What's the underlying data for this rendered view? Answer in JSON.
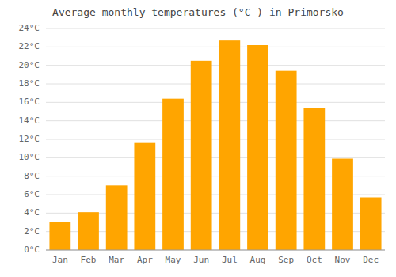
{
  "chart_data": {
    "type": "bar",
    "title": "Average monthly temperatures (°C ) in Primorsko",
    "categories": [
      "Jan",
      "Feb",
      "Mar",
      "Apr",
      "May",
      "Jun",
      "Jul",
      "Aug",
      "Sep",
      "Oct",
      "Nov",
      "Dec"
    ],
    "values": [
      3.0,
      4.1,
      7.0,
      11.6,
      16.4,
      20.5,
      22.7,
      22.2,
      19.4,
      15.4,
      9.9,
      5.7
    ],
    "color": "#FFA500",
    "ylim": [
      0,
      24
    ],
    "yticks": [
      {
        "value": 0,
        "label": "0°C"
      },
      {
        "value": 2,
        "label": "2°C"
      },
      {
        "value": 4,
        "label": "4°C"
      },
      {
        "value": 6,
        "label": "6°C"
      },
      {
        "value": 8,
        "label": "8°C"
      },
      {
        "value": 10,
        "label": "10°C"
      },
      {
        "value": 12,
        "label": "12°C"
      },
      {
        "value": 14,
        "label": "14°C"
      },
      {
        "value": 16,
        "label": "16°C"
      },
      {
        "value": 18,
        "label": "18°C"
      },
      {
        "value": 20,
        "label": "20°C"
      },
      {
        "value": 22,
        "label": "22°C"
      },
      {
        "value": 24,
        "label": "24°C"
      }
    ],
    "grid": true
  }
}
